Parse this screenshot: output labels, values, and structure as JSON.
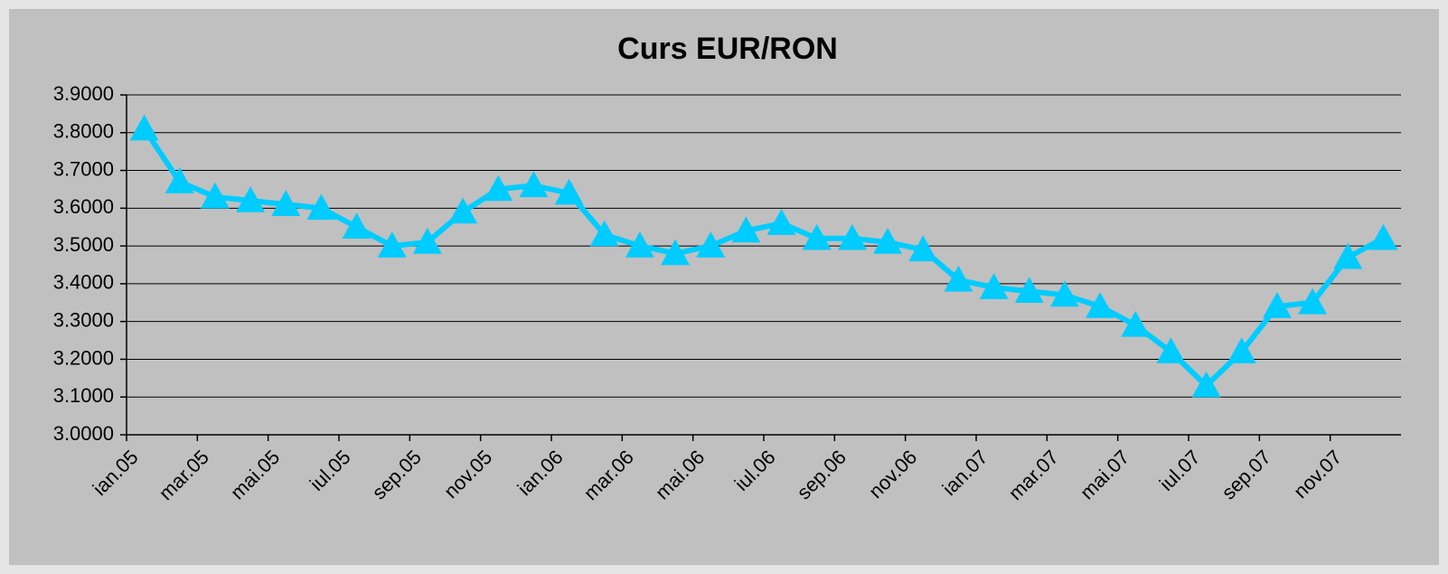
{
  "chart_data": {
    "type": "line",
    "title": "Curs EUR/RON",
    "categories": [
      "ian.05",
      null,
      "mar.05",
      null,
      "mai.05",
      null,
      "iul.05",
      null,
      "sep.05",
      null,
      "nov.05",
      null,
      "ian.06",
      null,
      "mar.06",
      null,
      "mai.06",
      null,
      "iul.06",
      null,
      "sep.06",
      null,
      "nov.06",
      null,
      "ian.07",
      null,
      "mar.07",
      null,
      "mai.07",
      null,
      "iul.07",
      null,
      "sep.07",
      null,
      "nov.07",
      null
    ],
    "series": [
      {
        "name": "EUR/RON",
        "color": "#00ccff",
        "marker": "triangle",
        "values": [
          3.81,
          3.67,
          3.63,
          3.62,
          3.61,
          3.6,
          3.55,
          3.5,
          3.51,
          3.59,
          3.65,
          3.66,
          3.64,
          3.53,
          3.5,
          3.48,
          3.5,
          3.54,
          3.56,
          3.52,
          3.52,
          3.51,
          3.49,
          3.41,
          3.39,
          3.38,
          3.37,
          3.34,
          3.29,
          3.22,
          3.13,
          3.22,
          3.34,
          3.35,
          3.47,
          3.52
        ]
      }
    ],
    "ylim": [
      3.0,
      3.9
    ],
    "yticks": [
      {
        "value": 3.0,
        "label": "3.0000"
      },
      {
        "value": 3.1,
        "label": "3.1000"
      },
      {
        "value": 3.2,
        "label": "3.2000"
      },
      {
        "value": 3.3,
        "label": "3.3000"
      },
      {
        "value": 3.4,
        "label": "3.4000"
      },
      {
        "value": 3.5,
        "label": "3.5000"
      },
      {
        "value": 3.6,
        "label": "3.6000"
      },
      {
        "value": 3.7,
        "label": "3.7000"
      },
      {
        "value": 3.8,
        "label": "3.8000"
      },
      {
        "value": 3.9,
        "label": "3.9000"
      }
    ],
    "grid": true
  }
}
